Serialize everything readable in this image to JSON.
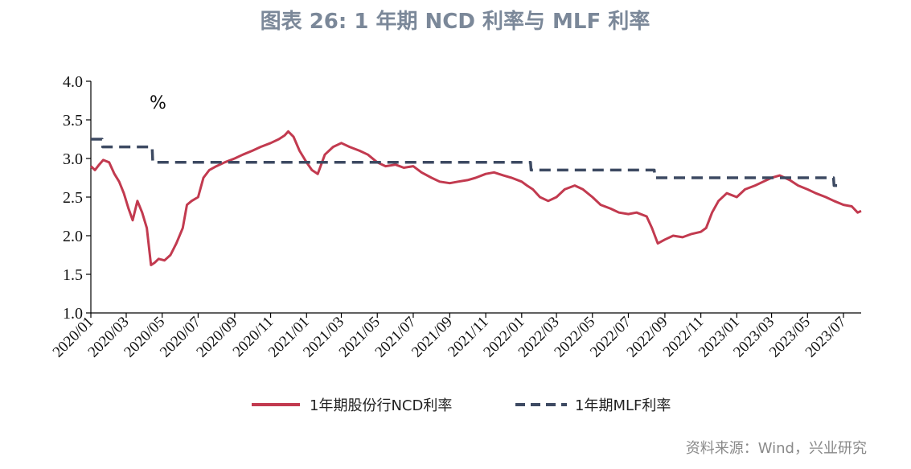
{
  "chart_data": {
    "type": "line",
    "title": "图表 26: 1 年期 NCD 利率与 MLF 利率",
    "unit": "%",
    "source": "资料来源：Wind，兴业研究",
    "ylim": [
      1.0,
      4.0
    ],
    "y_ticks": [
      "4.0",
      "3.5",
      "3.0",
      "2.5",
      "2.0",
      "1.5",
      "1.0"
    ],
    "y_tick_values": [
      4.0,
      3.5,
      3.0,
      2.5,
      2.0,
      1.5,
      1.0
    ],
    "x_ticks": [
      "2020/01",
      "2020/03",
      "2020/05",
      "2020/07",
      "2020/09",
      "2020/11",
      "2021/01",
      "2021/03",
      "2021/05",
      "2021/07",
      "2021/09",
      "2021/11",
      "2022/01",
      "2022/03",
      "2022/05",
      "2022/07",
      "2022/09",
      "2022/11",
      "2023/01",
      "2023/03",
      "2023/05",
      "2023/07"
    ],
    "xlim": [
      "2020-01-01",
      "2023-07-31"
    ],
    "grid": false,
    "legend_position": "bottom",
    "colors": {
      "ncd": "#c23a4f",
      "mlf": "#3d4a62",
      "title": "#7b8899",
      "source": "#8a8a8a"
    },
    "series": [
      {
        "name": "1年期股份行NCD利率",
        "style": "solid",
        "x": [
          "2020-01-01",
          "2020-01-08",
          "2020-01-15",
          "2020-01-22",
          "2020-02-01",
          "2020-02-10",
          "2020-02-18",
          "2020-02-26",
          "2020-03-05",
          "2020-03-12",
          "2020-03-20",
          "2020-03-28",
          "2020-04-05",
          "2020-04-12",
          "2020-04-18",
          "2020-04-25",
          "2020-05-05",
          "2020-05-15",
          "2020-05-25",
          "2020-06-05",
          "2020-06-12",
          "2020-06-20",
          "2020-07-01",
          "2020-07-10",
          "2020-07-20",
          "2020-08-01",
          "2020-08-15",
          "2020-09-01",
          "2020-09-15",
          "2020-10-01",
          "2020-10-15",
          "2020-11-01",
          "2020-11-15",
          "2020-11-25",
          "2020-12-01",
          "2020-12-10",
          "2020-12-20",
          "2021-01-01",
          "2021-01-10",
          "2021-01-20",
          "2021-02-01",
          "2021-02-15",
          "2021-03-01",
          "2021-03-15",
          "2021-04-01",
          "2021-04-15",
          "2021-05-01",
          "2021-05-15",
          "2021-06-01",
          "2021-06-15",
          "2021-07-01",
          "2021-07-15",
          "2021-08-01",
          "2021-08-15",
          "2021-09-01",
          "2021-09-15",
          "2021-10-01",
          "2021-10-15",
          "2021-11-01",
          "2021-11-15",
          "2021-12-01",
          "2021-12-15",
          "2022-01-01",
          "2022-01-10",
          "2022-01-20",
          "2022-02-01",
          "2022-02-15",
          "2022-03-01",
          "2022-03-15",
          "2022-04-01",
          "2022-04-15",
          "2022-05-01",
          "2022-05-15",
          "2022-06-01",
          "2022-06-15",
          "2022-07-01",
          "2022-07-15",
          "2022-08-01",
          "2022-08-10",
          "2022-08-20",
          "2022-09-01",
          "2022-09-15",
          "2022-10-01",
          "2022-10-15",
          "2022-11-01",
          "2022-11-10",
          "2022-11-20",
          "2022-12-01",
          "2022-12-15",
          "2023-01-01",
          "2023-01-15",
          "2023-02-01",
          "2023-02-15",
          "2023-03-01",
          "2023-03-15",
          "2023-04-01",
          "2023-04-15",
          "2023-05-01",
          "2023-05-15",
          "2023-06-01",
          "2023-06-15",
          "2023-07-01",
          "2023-07-15",
          "2023-07-25",
          "2023-07-31"
        ],
        "values": [
          2.9,
          2.85,
          2.92,
          2.98,
          2.95,
          2.8,
          2.7,
          2.55,
          2.35,
          2.2,
          2.45,
          2.3,
          2.1,
          1.62,
          1.65,
          1.7,
          1.68,
          1.75,
          1.9,
          2.1,
          2.4,
          2.45,
          2.5,
          2.75,
          2.85,
          2.9,
          2.95,
          3.0,
          3.05,
          3.1,
          3.15,
          3.2,
          3.25,
          3.3,
          3.35,
          3.28,
          3.1,
          2.95,
          2.85,
          2.8,
          3.05,
          3.15,
          3.2,
          3.15,
          3.1,
          3.05,
          2.95,
          2.9,
          2.92,
          2.88,
          2.9,
          2.82,
          2.75,
          2.7,
          2.68,
          2.7,
          2.72,
          2.75,
          2.8,
          2.82,
          2.78,
          2.75,
          2.7,
          2.65,
          2.6,
          2.5,
          2.45,
          2.5,
          2.6,
          2.65,
          2.6,
          2.5,
          2.4,
          2.35,
          2.3,
          2.28,
          2.3,
          2.25,
          2.1,
          1.9,
          1.95,
          2.0,
          1.98,
          2.02,
          2.05,
          2.1,
          2.3,
          2.45,
          2.55,
          2.5,
          2.6,
          2.65,
          2.7,
          2.75,
          2.78,
          2.72,
          2.65,
          2.6,
          2.55,
          2.5,
          2.45,
          2.4,
          2.38,
          2.3,
          2.32
        ]
      },
      {
        "name": "1年期MLF利率",
        "style": "dashed",
        "x": [
          "2020-01-01",
          "2020-01-20",
          "2020-01-21",
          "2020-04-14",
          "2020-04-15",
          "2022-01-16",
          "2022-01-17",
          "2022-08-14",
          "2022-08-15",
          "2023-06-14",
          "2023-06-15",
          "2023-06-30"
        ],
        "values": [
          3.25,
          3.25,
          3.15,
          3.15,
          2.95,
          2.95,
          2.85,
          2.85,
          2.75,
          2.75,
          2.65,
          2.65
        ]
      }
    ]
  }
}
